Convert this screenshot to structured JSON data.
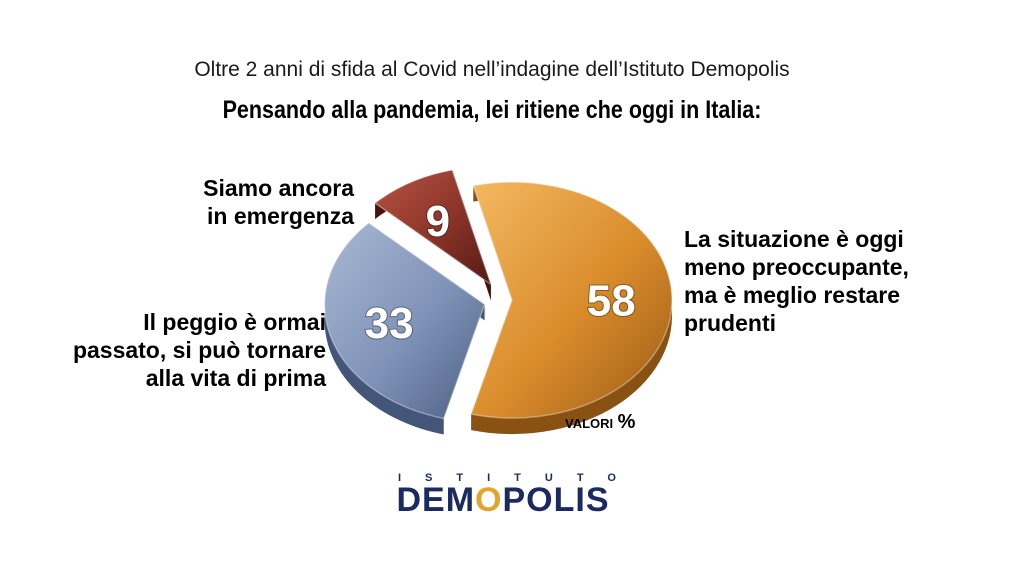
{
  "header": {
    "subtitle": "Oltre 2 anni di sfida al Covid nell’indagine dell’Istituto Demopolis",
    "title": "Pensando alla pandemia, lei ritiene che oggi in Italia:"
  },
  "chart_data": {
    "type": "pie",
    "unit_label": "VALORI",
    "unit_symbol": "%",
    "slices": [
      {
        "label_lines": [
          "La situazione è oggi",
          "meno preoccupante,",
          "ma è meglio restare",
          "prudenti"
        ],
        "value": 58,
        "color": "#d98b2b"
      },
      {
        "label_lines": [
          "Il peggio è ormai",
          "passato, si può tornare",
          "alla vita di prima"
        ],
        "value": 33,
        "color": "#7f93b8"
      },
      {
        "label_lines": [
          "Siamo ancora",
          "in emergenza"
        ],
        "value": 9,
        "color": "#8a3328"
      }
    ]
  },
  "logo": {
    "top": "ISTITUTO",
    "main_a": "DEM",
    "main_o": "O",
    "main_b": "POLIS"
  }
}
